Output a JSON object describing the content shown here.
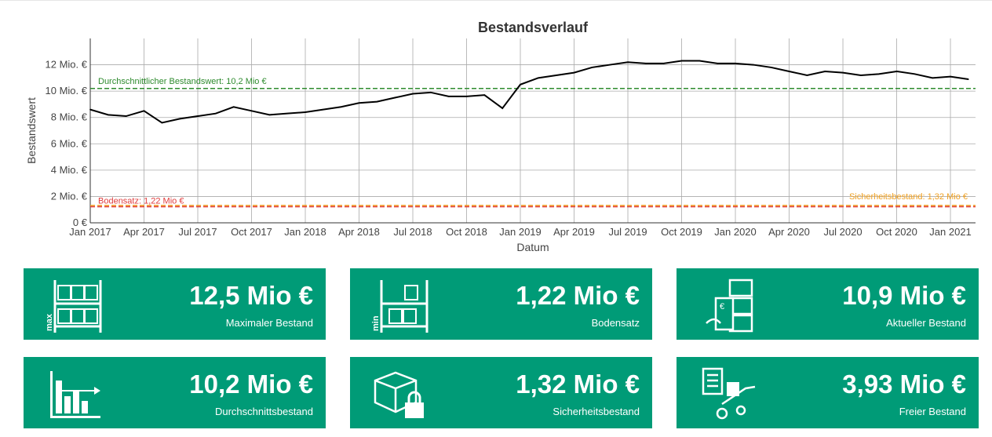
{
  "chart_data": {
    "type": "line",
    "title": "Bestandsverlauf",
    "xlabel": "Datum",
    "ylabel": "Bestandswert",
    "ylim": [
      0,
      14
    ],
    "xlim": [
      "2017-01",
      "2021-02"
    ],
    "grid": true,
    "y_ticks": [
      "0 €",
      "2 Mio. €",
      "4 Mio. €",
      "6 Mio. €",
      "8 Mio. €",
      "10 Mio. €",
      "12 Mio. €"
    ],
    "x_ticks": [
      "Jan 2017",
      "Apr 2017",
      "Jul 2017",
      "Oct 2017",
      "Jan 2018",
      "Apr 2018",
      "Jul 2018",
      "Oct 2018",
      "Jan 2019",
      "Apr 2019",
      "Jul 2019",
      "Oct 2019",
      "Jan 2020",
      "Apr 2020",
      "Jul 2020",
      "Oct 2020",
      "Jan 2021"
    ],
    "series": [
      {
        "color": "#000000",
        "x": [
          "2017-01",
          "2017-02",
          "2017-03",
          "2017-04",
          "2017-05",
          "2017-06",
          "2017-07",
          "2017-08",
          "2017-09",
          "2017-10",
          "2017-11",
          "2017-12",
          "2018-01",
          "2018-02",
          "2018-03",
          "2018-04",
          "2018-05",
          "2018-06",
          "2018-07",
          "2018-08",
          "2018-09",
          "2018-10",
          "2018-11",
          "2018-12",
          "2019-01",
          "2019-02",
          "2019-03",
          "2019-04",
          "2019-05",
          "2019-06",
          "2019-07",
          "2019-08",
          "2019-09",
          "2019-10",
          "2019-11",
          "2019-12",
          "2020-01",
          "2020-02",
          "2020-03",
          "2020-04",
          "2020-05",
          "2020-06",
          "2020-07",
          "2020-08",
          "2020-09",
          "2020-10",
          "2020-11",
          "2020-12",
          "2021-01",
          "2021-02"
        ],
        "y": [
          8.6,
          8.2,
          8.1,
          8.5,
          7.6,
          7.9,
          8.1,
          8.3,
          8.8,
          8.5,
          8.2,
          8.3,
          8.4,
          8.6,
          8.8,
          9.1,
          9.2,
          9.5,
          9.8,
          9.9,
          9.6,
          9.6,
          9.7,
          8.7,
          10.5,
          11.0,
          11.2,
          11.4,
          11.8,
          12.0,
          12.2,
          12.1,
          12.1,
          12.3,
          12.3,
          12.1,
          12.1,
          12.0,
          11.8,
          11.5,
          11.2,
          11.5,
          11.4,
          11.2,
          11.3,
          11.5,
          11.3,
          11.0,
          11.1,
          10.9
        ]
      }
    ],
    "reference_lines": [
      {
        "label": "Durchschnittlicher Bestandswert: 10,2 Mio €",
        "value": 10.2,
        "color": "#2e8b2e"
      },
      {
        "label": "Sicherheitsbestand: 1,32 Mio €",
        "value": 1.32,
        "color": "#f0a020"
      },
      {
        "label": "Bodensatz: 1,22 Mio €",
        "value": 1.22,
        "color": "#e03c3c"
      }
    ]
  },
  "cards": [
    {
      "value": "12,5 Mio €",
      "label": "Maximaler Bestand",
      "icon": "shelf-max-icon",
      "icon_text": "max"
    },
    {
      "value": "1,22 Mio €",
      "label": "Bodensatz",
      "icon": "shelf-min-icon",
      "icon_text": "min"
    },
    {
      "value": "10,9 Mio €",
      "label": "Aktueller Bestand",
      "icon": "boxes-invoice-icon"
    },
    {
      "value": "10,2 Mio €",
      "label": "Durchschnittsbestand",
      "icon": "bar-chart-icon"
    },
    {
      "value": "1,32 Mio €",
      "label": "Sicherheitsbestand",
      "icon": "box-lock-icon"
    },
    {
      "value": "3,93 Mio €",
      "label": "Freier Bestand",
      "icon": "hand-truck-icon"
    }
  ],
  "colors": {
    "card": "#009b77"
  }
}
